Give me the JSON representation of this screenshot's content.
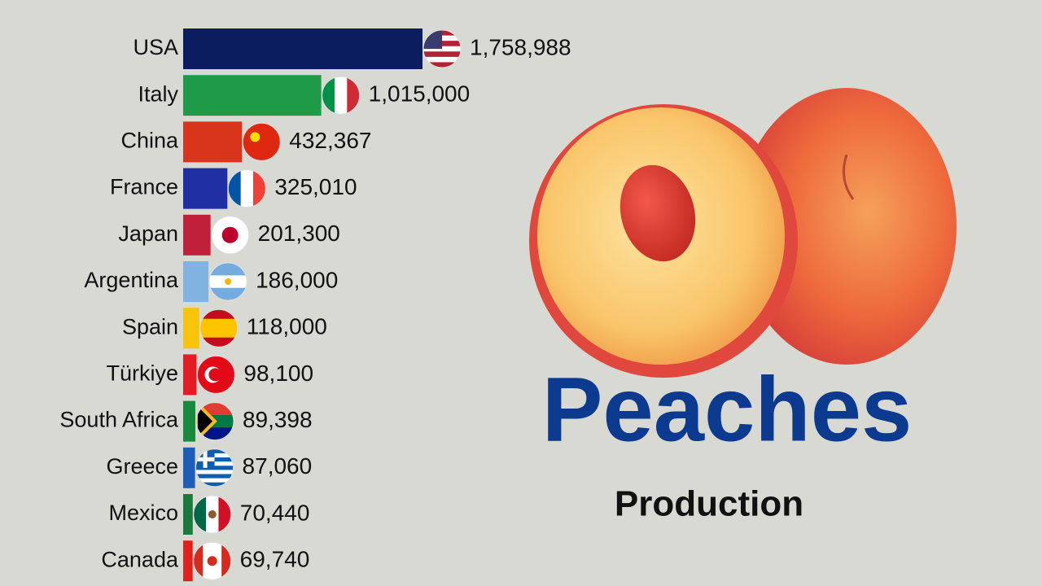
{
  "chart_data": {
    "type": "bar",
    "orientation": "horizontal",
    "title": "Peaches",
    "subtitle": "Production",
    "categories": [
      "USA",
      "Italy",
      "China",
      "France",
      "Japan",
      "Argentina",
      "Spain",
      "Türkiye",
      "South Africa",
      "Greece",
      "Mexico",
      "Canada"
    ],
    "values": [
      1758988,
      1015000,
      432367,
      325010,
      201300,
      186000,
      118000,
      98100,
      89398,
      87060,
      70440,
      69740
    ],
    "value_labels": [
      "1,758,988",
      "1,015,000",
      "432,367",
      "325,010",
      "201,300",
      "186,000",
      "118,000",
      "98,100",
      "89,398",
      "87,060",
      "70,440",
      "69,740"
    ],
    "colors": [
      "#0b1d5e",
      "#1e9a48",
      "#d9341c",
      "#1f2ea3",
      "#c1203a",
      "#80b3e0",
      "#f8c40a",
      "#e31b23",
      "#1a8a3e",
      "#1e5db8",
      "#1a7a3e",
      "#e0201c"
    ]
  }
}
